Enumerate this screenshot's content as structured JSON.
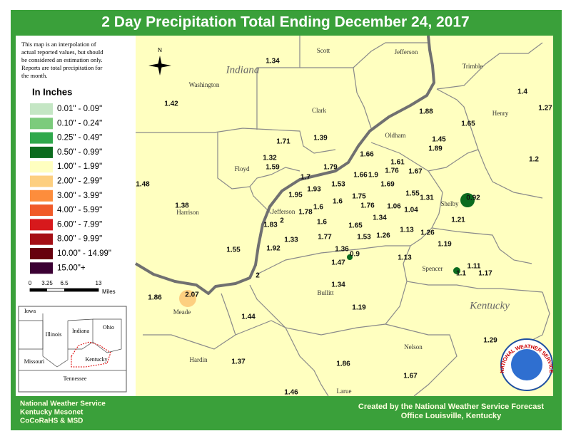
{
  "title": "2 Day Precipitation Total Ending December 24, 2017",
  "note": [
    "This map is an interpolation of",
    "actual reported values, but should",
    "be considered an estimation only.",
    "Reports are total precipitation for",
    "the month."
  ],
  "legend": {
    "title": "In Inches",
    "items": [
      {
        "label": "0.01\" - 0.09\"",
        "color": "#c4e6c4"
      },
      {
        "label": "0.10\" - 0.24\"",
        "color": "#7ccb7c"
      },
      {
        "label": "0.25\" - 0.49\"",
        "color": "#2fa84c"
      },
      {
        "label": "0.50\" - 0.99\"",
        "color": "#0b6b1e"
      },
      {
        "label": "1.00\" - 1.99\"",
        "color": "#ffffc0"
      },
      {
        "label": "2.00\" - 2.99\"",
        "color": "#fdcf80"
      },
      {
        "label": "3.00\" - 3.99\"",
        "color": "#fd8d3c"
      },
      {
        "label": "4.00\" - 5.99\"",
        "color": "#f05a28"
      },
      {
        "label": "6.00\" - 7.99\"",
        "color": "#d7191c"
      },
      {
        "label": "8.00\" - 9.99\"",
        "color": "#a50f15"
      },
      {
        "label": "10.00\" - 14.99\"",
        "color": "#67000d"
      },
      {
        "label": "15.00\"+",
        "color": "#3b0033"
      }
    ]
  },
  "scale": {
    "labels": [
      "0",
      "3.25",
      "6.5",
      "13"
    ],
    "unit": "Miles"
  },
  "north": "N",
  "states": [
    "Indiana",
    "Kentucky"
  ],
  "counties": [
    "Scott",
    "Jefferson",
    "Trimble",
    "Washington",
    "Henry",
    "Clark",
    "Oldham",
    "Floyd",
    "Jefferson",
    "Harrison",
    "Shelby",
    "Spencer",
    "Bullitt",
    "Meade",
    "Nelson",
    "Hardin",
    "Larue"
  ],
  "readings": [
    "1.34",
    "1.42",
    "1.4",
    "1.27",
    "1.88",
    "1.65",
    "1.39",
    "1.45",
    "1.89",
    "1.71",
    "1.66",
    "1.32",
    "1.61",
    "1.2",
    "1.59",
    "1.79",
    "1.76",
    "1.67",
    "1.66",
    "1.9",
    "1.7",
    "1.48",
    "1.53",
    "1.69",
    "1.93",
    "1.95",
    "1.75",
    "1.55",
    "1.31",
    "0.92",
    "1.6",
    "1.38",
    "1.76",
    "1.06",
    "1.04",
    "1.6",
    "1.78",
    "1.34",
    "1.21",
    "2",
    "1.83",
    "1.6",
    "1.65",
    "1.13",
    "1.26",
    "1.77",
    "1.53",
    "1.26",
    "1.33",
    "1.19",
    "1.92",
    "1.55",
    "1.36",
    "0.9",
    "1.47",
    "1.13",
    "1.11",
    "1.1",
    "1.17",
    "2",
    "1.34",
    "1.86",
    "2.07",
    "1.19",
    "1.44",
    "1.29",
    "1.37",
    "1.86",
    "1.67",
    "1.46"
  ],
  "inset": [
    "Iowa",
    "Illinois",
    "Indiana",
    "Ohio",
    "Missouri",
    "Kentucky",
    "Tennessee"
  ],
  "footer": {
    "left": [
      "National Weather Service",
      "Kentucky Mesonet",
      "CoCoRaHS & MSD"
    ],
    "right": [
      "Created by the National Weather Service Forecast",
      "Office Louisville, Kentucky"
    ]
  },
  "logo": "NATIONAL WEATHER SERVICE"
}
